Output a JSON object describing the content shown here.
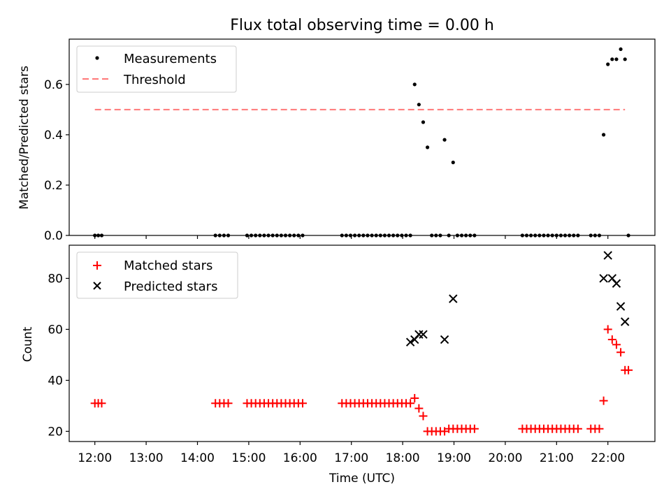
{
  "figure": {
    "title": "Flux total observing time = 0.00 h",
    "xlabel": "Time (UTC)"
  },
  "chart_data": [
    {
      "type": "scatter",
      "ylabel": "Matched/Predicted stars",
      "xlim": [
        "11:30",
        "22:55"
      ],
      "ylim": [
        0,
        0.78
      ],
      "yticks": [
        "0.0",
        "0.2",
        "0.4",
        "0.6"
      ],
      "ytick_values": [
        0,
        0.2,
        0.4,
        0.6
      ],
      "grid": false,
      "legend_position": "top-left",
      "legend": [
        "Measurements",
        "Threshold"
      ],
      "threshold": {
        "name": "Threshold",
        "value": 0.5,
        "x_start": "12:00",
        "x_end": "22:20",
        "color": "#ff7777"
      },
      "series": [
        {
          "name": "Measurements",
          "marker": "dot",
          "color": "#000000",
          "x": [
            "12:00",
            "12:04",
            "12:08",
            "14:21",
            "14:26",
            "14:31",
            "14:36",
            "14:58",
            "15:03",
            "15:08",
            "15:13",
            "15:18",
            "15:23",
            "15:28",
            "15:33",
            "15:38",
            "15:43",
            "15:48",
            "15:53",
            "15:58",
            "16:03",
            "16:49",
            "16:54",
            "16:59",
            "17:04",
            "17:09",
            "17:14",
            "17:19",
            "17:24",
            "17:29",
            "17:34",
            "17:39",
            "17:44",
            "17:49",
            "17:54",
            "17:59",
            "18:04",
            "18:09",
            "18:14",
            "18:19",
            "18:24",
            "18:29",
            "18:34",
            "18:39",
            "18:44",
            "18:49",
            "18:54",
            "18:59",
            "19:04",
            "19:09",
            "19:14",
            "19:19",
            "19:24",
            "20:20",
            "20:25",
            "20:30",
            "20:35",
            "20:40",
            "20:45",
            "20:50",
            "20:55",
            "21:00",
            "21:05",
            "21:10",
            "21:15",
            "21:20",
            "21:25",
            "21:40",
            "21:45",
            "21:50",
            "21:55",
            "22:00",
            "22:05",
            "22:10",
            "22:15",
            "22:20",
            "22:24"
          ],
          "y": [
            0,
            0,
            0,
            0,
            0,
            0,
            0,
            0,
            0,
            0,
            0,
            0,
            0,
            0,
            0,
            0,
            0,
            0,
            0,
            0,
            0,
            0,
            0,
            0,
            0,
            0,
            0,
            0,
            0,
            0,
            0,
            0,
            0,
            0,
            0,
            0,
            0,
            0,
            0.6,
            0.52,
            0.45,
            0.35,
            0,
            0,
            0,
            0.38,
            0,
            0.29,
            0,
            0,
            0,
            0,
            0,
            0,
            0,
            0,
            0,
            0,
            0,
            0,
            0,
            0,
            0,
            0,
            0,
            0,
            0,
            0,
            0,
            0,
            0.4,
            0.68,
            0.7,
            0.7,
            0.74,
            0.7,
            0
          ]
        }
      ]
    },
    {
      "type": "scatter",
      "ylabel": "Count",
      "xlim": [
        "11:30",
        "22:55"
      ],
      "ylim": [
        16,
        93
      ],
      "yticks": [
        "20",
        "40",
        "60",
        "80"
      ],
      "ytick_values": [
        20,
        40,
        60,
        80
      ],
      "xticks": [
        "12:00",
        "13:00",
        "14:00",
        "15:00",
        "16:00",
        "17:00",
        "18:00",
        "19:00",
        "20:00",
        "21:00",
        "22:00"
      ],
      "grid": false,
      "legend_position": "top-left",
      "legend": [
        "Matched stars",
        "Predicted stars"
      ],
      "series": [
        {
          "name": "Matched stars",
          "marker": "plus",
          "color": "#ff0000",
          "x": [
            "12:00",
            "12:04",
            "12:08",
            "14:21",
            "14:26",
            "14:31",
            "14:36",
            "14:58",
            "15:03",
            "15:08",
            "15:13",
            "15:18",
            "15:23",
            "15:28",
            "15:33",
            "15:38",
            "15:43",
            "15:48",
            "15:53",
            "15:58",
            "16:03",
            "16:49",
            "16:54",
            "16:59",
            "17:04",
            "17:09",
            "17:14",
            "17:19",
            "17:24",
            "17:29",
            "17:34",
            "17:39",
            "17:44",
            "17:49",
            "17:54",
            "17:59",
            "18:04",
            "18:09",
            "18:14",
            "18:19",
            "18:24",
            "18:29",
            "18:34",
            "18:39",
            "18:44",
            "18:49",
            "18:54",
            "18:59",
            "19:04",
            "19:09",
            "19:14",
            "19:19",
            "19:24",
            "20:20",
            "20:25",
            "20:30",
            "20:35",
            "20:40",
            "20:45",
            "20:50",
            "20:55",
            "21:00",
            "21:05",
            "21:10",
            "21:15",
            "21:20",
            "21:25",
            "21:40",
            "21:45",
            "21:50",
            "21:55",
            "22:00",
            "22:05",
            "22:10",
            "22:15",
            "22:20",
            "22:24"
          ],
          "y": [
            31,
            31,
            31,
            31,
            31,
            31,
            31,
            31,
            31,
            31,
            31,
            31,
            31,
            31,
            31,
            31,
            31,
            31,
            31,
            31,
            31,
            31,
            31,
            31,
            31,
            31,
            31,
            31,
            31,
            31,
            31,
            31,
            31,
            31,
            31,
            31,
            31,
            31,
            33,
            29,
            26,
            20,
            20,
            20,
            20,
            20,
            21,
            21,
            21,
            21,
            21,
            21,
            21,
            21,
            21,
            21,
            21,
            21,
            21,
            21,
            21,
            21,
            21,
            21,
            21,
            21,
            21,
            21,
            21,
            21,
            32,
            60,
            56,
            54,
            51,
            44,
            44
          ]
        },
        {
          "name": "Predicted stars",
          "marker": "x",
          "color": "#000000",
          "x": [
            "18:09",
            "18:14",
            "18:19",
            "18:24",
            "18:49",
            "18:59",
            "21:55",
            "22:00",
            "22:05",
            "22:10",
            "22:15",
            "22:20"
          ],
          "y": [
            55,
            56,
            58,
            58,
            56,
            72,
            80,
            89,
            80,
            78,
            69,
            63
          ]
        }
      ]
    }
  ]
}
